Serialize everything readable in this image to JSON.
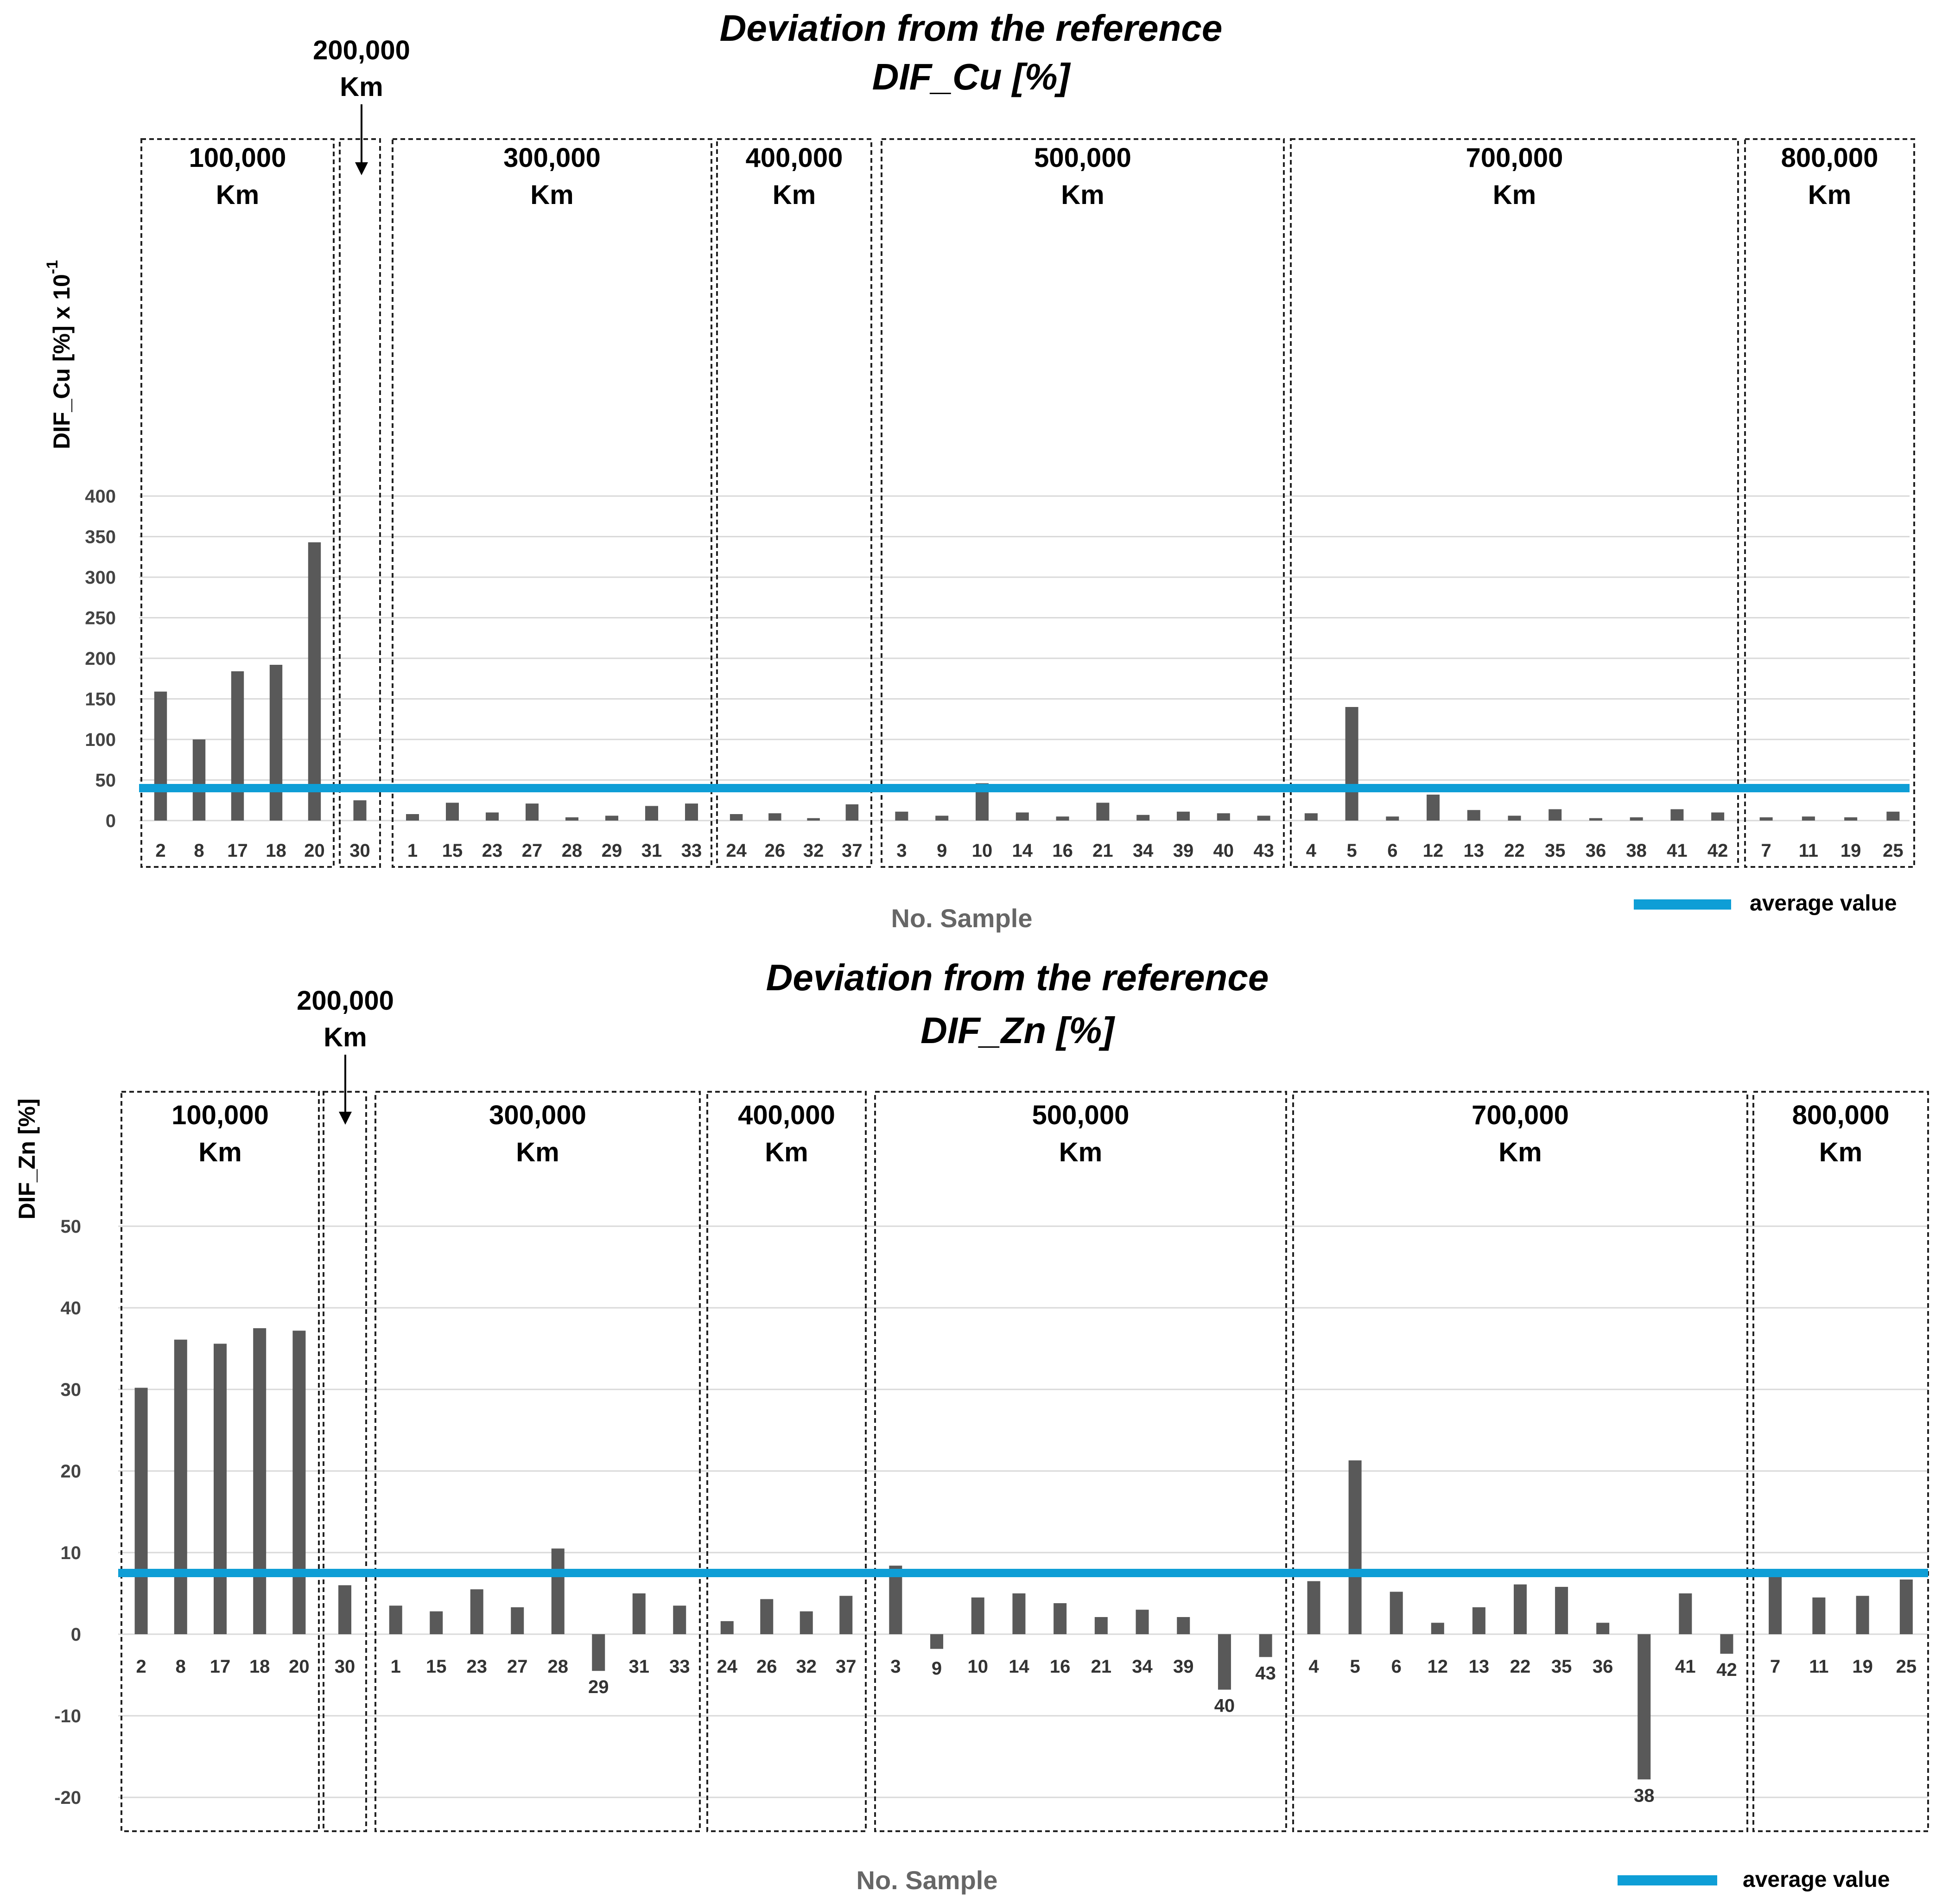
{
  "colors": {
    "bar": "#595959",
    "average": "#0e9ed6",
    "grid": "#d9d9d9",
    "box": "#222222"
  },
  "chart_data": [
    {
      "type": "bar",
      "title_line1": "Deviation from the reference",
      "title_line2": "DIF_Cu [%]",
      "ylabel": "DIF_Cu [%] x 10",
      "ylabel_sup": "-1",
      "xlabel": "No. Sample",
      "ylim": [
        0,
        420
      ],
      "yticks": [
        0,
        50,
        100,
        150,
        200,
        250,
        300,
        350,
        400
      ],
      "average": 40,
      "legend": "average value",
      "callout": {
        "value": "200,000",
        "unit": "Km"
      },
      "groups": [
        {
          "label": "100,000",
          "unit": "Km",
          "categories": [
            "2",
            "8",
            "17",
            "18",
            "20"
          ],
          "values": [
            159,
            100,
            184,
            192,
            343
          ]
        },
        {
          "label": "",
          "unit": "",
          "categories": [
            "30"
          ],
          "values": [
            25
          ]
        },
        {
          "label": "300,000",
          "unit": "Km",
          "categories": [
            "1",
            "15",
            "23",
            "27",
            "28",
            "29",
            "31",
            "33"
          ],
          "values": [
            8,
            22,
            10,
            21,
            4,
            6,
            18,
            21
          ]
        },
        {
          "label": "400,000",
          "unit": "Km",
          "categories": [
            "24",
            "26",
            "32",
            "37"
          ],
          "values": [
            8,
            9,
            3,
            20
          ]
        },
        {
          "label": "500,000",
          "unit": "Km",
          "categories": [
            "3",
            "9",
            "10",
            "14",
            "16",
            "21",
            "34",
            "39",
            "40",
            "43"
          ],
          "values": [
            11,
            6,
            46,
            10,
            5,
            22,
            7,
            11,
            9,
            6
          ]
        },
        {
          "label": "700,000",
          "unit": "Km",
          "categories": [
            "4",
            "5",
            "6",
            "12",
            "13",
            "22",
            "35",
            "36",
            "38",
            "41",
            "42"
          ],
          "values": [
            9,
            140,
            5,
            32,
            13,
            6,
            14,
            3,
            4,
            14,
            10
          ]
        },
        {
          "label": "800,000",
          "unit": "Km",
          "categories": [
            "7",
            "11",
            "19",
            "25"
          ],
          "values": [
            4,
            5,
            4,
            11
          ]
        }
      ]
    },
    {
      "type": "bar",
      "title_line1": "Deviation from the reference",
      "title_line2": "DIF_Zn [%]",
      "ylabel": "DIF_Zn [%]",
      "ylabel_sup": "",
      "xlabel": "No. Sample",
      "ylim": [
        -22,
        60
      ],
      "yticks": [
        -20,
        -10,
        0,
        10,
        20,
        30,
        40,
        50
      ],
      "average": 7.5,
      "legend": "average value",
      "callout": {
        "value": "200,000",
        "unit": "Km"
      },
      "groups": [
        {
          "label": "100,000",
          "unit": "Km",
          "categories": [
            "2",
            "8",
            "17",
            "18",
            "20"
          ],
          "values": [
            30.2,
            36.1,
            35.6,
            37.5,
            37.2
          ]
        },
        {
          "label": "",
          "unit": "",
          "categories": [
            "30"
          ],
          "values": [
            6.0
          ]
        },
        {
          "label": "300,000",
          "unit": "Km",
          "categories": [
            "1",
            "15",
            "23",
            "27",
            "28",
            "29",
            "31",
            "33"
          ],
          "values": [
            3.5,
            2.8,
            5.5,
            3.3,
            10.5,
            -4.5,
            5.0,
            3.5
          ]
        },
        {
          "label": "400,000",
          "unit": "Km",
          "categories": [
            "24",
            "26",
            "32",
            "37"
          ],
          "values": [
            1.6,
            4.3,
            2.8,
            4.7
          ]
        },
        {
          "label": "500,000",
          "unit": "Km",
          "categories": [
            "3",
            "9",
            "10",
            "14",
            "16",
            "21",
            "34",
            "39",
            "40",
            "43"
          ],
          "values": [
            8.4,
            -1.8,
            4.5,
            5.0,
            3.8,
            2.1,
            3.0,
            2.1,
            -6.8,
            -2.8
          ]
        },
        {
          "label": "700,000",
          "unit": "Km",
          "categories": [
            "4",
            "5",
            "6",
            "12",
            "13",
            "22",
            "35",
            "36",
            "38",
            "41",
            "42"
          ],
          "values": [
            6.5,
            21.3,
            5.2,
            1.4,
            3.3,
            6.1,
            5.8,
            1.4,
            -17.8,
            5.0,
            -2.4
          ]
        },
        {
          "label": "800,000",
          "unit": "Km",
          "categories": [
            "7",
            "11",
            "19",
            "25"
          ],
          "values": [
            7.8,
            4.5,
            4.7,
            6.7
          ]
        }
      ]
    }
  ]
}
